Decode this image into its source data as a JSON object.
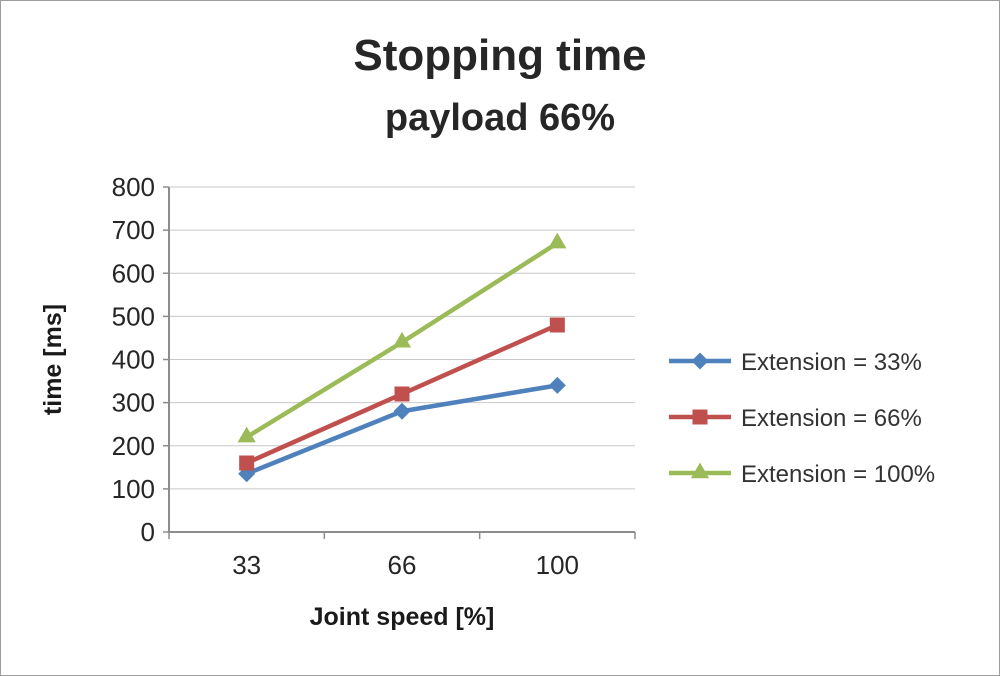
{
  "chart_data": {
    "type": "line",
    "title": "Stopping time",
    "subtitle": "payload 66%",
    "xlabel": "Joint speed [%]",
    "ylabel": "time [ms]",
    "categories": [
      "33",
      "66",
      "100"
    ],
    "series": [
      {
        "name": "Extension = 33%",
        "values": [
          135,
          280,
          340
        ],
        "color": "#4f81bd",
        "marker": "diamond"
      },
      {
        "name": "Extension = 66%",
        "values": [
          160,
          320,
          480
        ],
        "color": "#c0504d",
        "marker": "square"
      },
      {
        "name": "Extension = 100%",
        "values": [
          220,
          440,
          670
        ],
        "color": "#9bbb59",
        "marker": "triangle"
      }
    ],
    "ylim": [
      0,
      800
    ],
    "yticks": [
      0,
      100,
      200,
      300,
      400,
      500,
      600,
      700,
      800
    ],
    "grid": true,
    "legend_position": "right"
  }
}
